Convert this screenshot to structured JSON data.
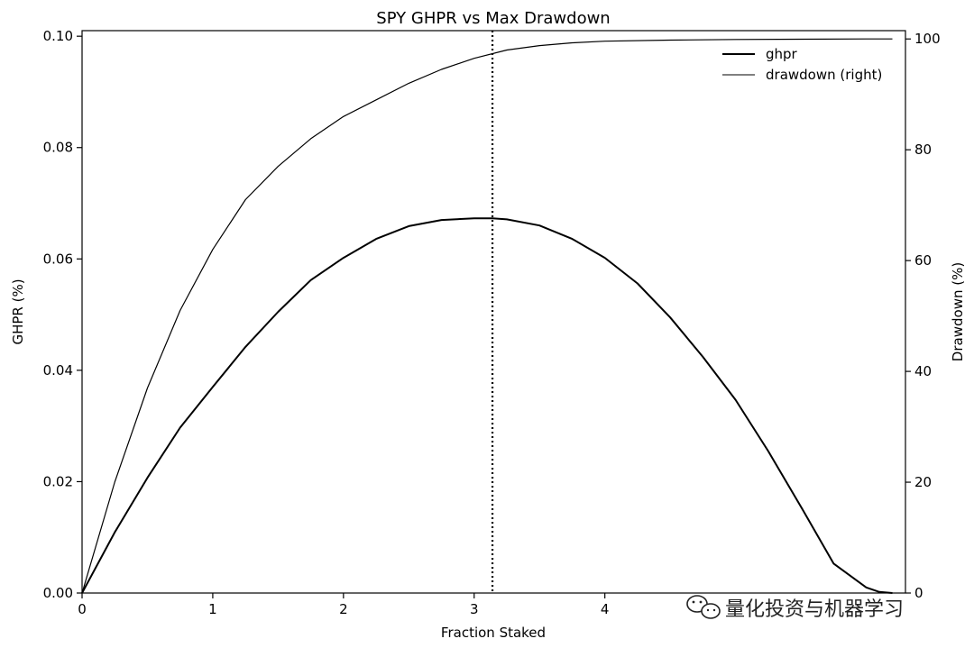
{
  "chart_data": {
    "type": "line",
    "title": "SPY GHPR vs Max Drawdown",
    "xlabel": "Fraction Staked",
    "ylabel_left": "GHPR (%)",
    "ylabel_right": "Drawdown (%)",
    "xlim": [
      0,
      6.3
    ],
    "ylim_left": [
      0,
      0.101
    ],
    "ylim_right": [
      0,
      101.5
    ],
    "x_ticks": [
      "0",
      "1",
      "2",
      "3",
      "4"
    ],
    "y_left_ticks": [
      "0.00",
      "0.02",
      "0.04",
      "0.06",
      "0.08",
      "0.10"
    ],
    "y_right_ticks": [
      "0",
      "20",
      "40",
      "60",
      "80",
      "100"
    ],
    "grid": false,
    "legend_position": "top-right",
    "legend": [
      "ghpr",
      "drawdown (right)"
    ],
    "vline_x": 3.14,
    "series": [
      {
        "name": "ghpr",
        "axis": "left",
        "color": "#000000",
        "x": [
          0,
          0.25,
          0.5,
          0.75,
          1.0,
          1.25,
          1.5,
          1.75,
          2.0,
          2.25,
          2.5,
          2.75,
          3.0,
          3.14,
          3.25,
          3.5,
          3.75,
          4.0,
          4.25,
          4.5,
          4.75,
          5.0,
          5.25,
          5.5,
          5.75,
          6.0,
          6.1,
          6.2
        ],
        "y": [
          0,
          0.0109,
          0.0207,
          0.0297,
          0.037,
          0.0442,
          0.0505,
          0.0562,
          0.0602,
          0.0636,
          0.0659,
          0.067,
          0.0673,
          0.0673,
          0.0671,
          0.066,
          0.0636,
          0.0602,
          0.0556,
          0.0495,
          0.0424,
          0.0347,
          0.0255,
          0.0155,
          0.0053,
          0.001,
          0.0002,
          0.0
        ]
      },
      {
        "name": "drawdown (right)",
        "axis": "right",
        "color": "#000000",
        "x": [
          0,
          0.25,
          0.5,
          0.75,
          1.0,
          1.25,
          1.5,
          1.75,
          2.0,
          2.25,
          2.5,
          2.75,
          3.0,
          3.25,
          3.5,
          3.75,
          4.0,
          4.5,
          5.0,
          5.5,
          6.0,
          6.2
        ],
        "y": [
          0,
          20,
          37,
          51,
          62,
          71,
          77,
          82,
          86,
          89,
          92,
          94.5,
          96.5,
          98,
          98.8,
          99.3,
          99.6,
          99.8,
          99.9,
          99.95,
          100,
          100
        ]
      }
    ]
  },
  "watermark": "量化投资与机器学习"
}
